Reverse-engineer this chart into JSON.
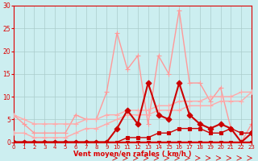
{
  "bg_color": "#cceef0",
  "grid_color": "#aacccc",
  "xlabel": "Vent moyen/en rafales ( km/h )",
  "xlabel_color": "#dd0000",
  "tick_color": "#dd0000",
  "x_ticks": [
    0,
    1,
    2,
    3,
    4,
    5,
    6,
    7,
    8,
    9,
    10,
    11,
    12,
    13,
    14,
    15,
    16,
    17,
    18,
    19,
    20,
    21,
    22,
    23
  ],
  "y_ticks": [
    0,
    5,
    10,
    15,
    20,
    25,
    30
  ],
  "ylim": [
    0,
    30
  ],
  "xlim": [
    0,
    23
  ],
  "series": [
    {
      "x": [
        0,
        1,
        2,
        3,
        4,
        5,
        6,
        7,
        8,
        9,
        10,
        11,
        12,
        13,
        14,
        15,
        16,
        17,
        18,
        19,
        20,
        21,
        22,
        23
      ],
      "y": [
        0,
        0,
        0,
        0,
        0,
        0,
        0,
        0,
        0,
        0,
        0,
        0,
        0,
        0,
        0,
        0,
        0,
        0,
        0,
        0,
        0,
        0,
        0,
        0
      ],
      "color": "#cc0000",
      "linewidth": 2.5,
      "marker": "s",
      "markersize": 2.5,
      "zorder": 5
    },
    {
      "x": [
        0,
        1,
        2,
        3,
        4,
        5,
        6,
        7,
        8,
        9,
        10,
        11,
        12,
        13,
        14,
        15,
        16,
        17,
        18,
        19,
        20,
        21,
        22,
        23
      ],
      "y": [
        0,
        0,
        0,
        0,
        0,
        0,
        0,
        0,
        0,
        0,
        0,
        1,
        1,
        1,
        2,
        2,
        3,
        3,
        3,
        2,
        2,
        3,
        2,
        2
      ],
      "color": "#cc0000",
      "linewidth": 1.0,
      "marker": "s",
      "markersize": 2.5,
      "zorder": 4
    },
    {
      "x": [
        0,
        1,
        2,
        3,
        4,
        5,
        6,
        7,
        8,
        9,
        10,
        11,
        12,
        13,
        14,
        15,
        16,
        17,
        18,
        19,
        20,
        21,
        22,
        23
      ],
      "y": [
        0,
        0,
        0,
        0,
        0,
        0,
        0,
        0,
        0,
        0,
        3,
        7,
        4,
        13,
        6,
        5,
        13,
        6,
        4,
        3,
        4,
        3,
        0,
        2
      ],
      "color": "#cc0000",
      "linewidth": 1.5,
      "marker": "D",
      "markersize": 3.5,
      "zorder": 6
    },
    {
      "x": [
        0,
        1,
        2,
        3,
        4,
        5,
        6,
        7,
        8,
        9,
        10,
        11,
        12,
        13,
        14,
        15,
        16,
        17,
        18,
        19,
        20,
        21,
        22,
        23
      ],
      "y": [
        6,
        5,
        4,
        4,
        4,
        4,
        4,
        5,
        5,
        6,
        6,
        7,
        7,
        7,
        8,
        8,
        9,
        9,
        9,
        10,
        10,
        10,
        11,
        11
      ],
      "color": "#ffaaaa",
      "linewidth": 1.0,
      "marker": "+",
      "markersize": 4,
      "zorder": 3
    },
    {
      "x": [
        0,
        1,
        2,
        3,
        4,
        5,
        6,
        7,
        8,
        9,
        10,
        11,
        12,
        13,
        14,
        15,
        16,
        17,
        18,
        19,
        20,
        21,
        22,
        23
      ],
      "y": [
        2,
        2,
        1,
        1,
        1,
        1,
        2,
        3,
        3,
        4,
        5,
        6,
        6,
        6,
        7,
        7,
        7,
        8,
        8,
        8,
        9,
        9,
        9,
        11
      ],
      "color": "#ffaaaa",
      "linewidth": 1.0,
      "marker": "+",
      "markersize": 4,
      "zorder": 3
    },
    {
      "x": [
        0,
        1,
        2,
        3,
        4,
        5,
        6,
        7,
        8,
        9,
        10,
        11,
        12,
        13,
        14,
        15,
        16,
        17,
        18,
        19,
        20,
        21,
        22,
        23
      ],
      "y": [
        6,
        4,
        2,
        2,
        2,
        2,
        6,
        5,
        5,
        11,
        24,
        16,
        19,
        4,
        19,
        15,
        29,
        13,
        13,
        9,
        12,
        3,
        0,
        4
      ],
      "color": "#ff9999",
      "linewidth": 1.0,
      "marker": "+",
      "markersize": 4,
      "zorder": 2
    }
  ]
}
